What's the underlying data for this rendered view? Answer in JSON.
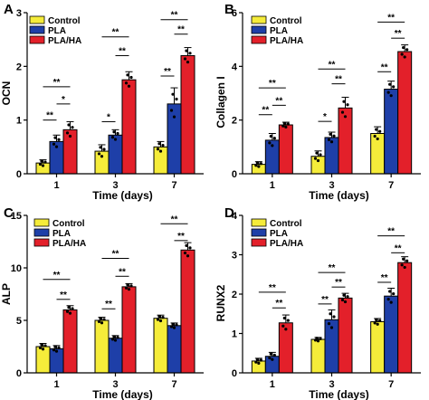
{
  "legend": {
    "items": [
      {
        "label": "Control",
        "color": "#f5ec3a"
      },
      {
        "label": "PLA",
        "color": "#1e3fa8"
      },
      {
        "label": "PLA/HA",
        "color": "#e3202a"
      }
    ]
  },
  "chart_data": [
    {
      "panel": "A",
      "type": "bar",
      "xlabel": "Time (days)",
      "ylabel": "OCN",
      "categories": [
        "1",
        "3",
        "7"
      ],
      "ylim": [
        0,
        3
      ],
      "yticks": [
        0,
        1,
        2,
        3
      ],
      "series": [
        {
          "name": "Control",
          "values": [
            0.2,
            0.42,
            0.5
          ],
          "errors": [
            0.06,
            0.12,
            0.1
          ]
        },
        {
          "name": "PLA",
          "values": [
            0.6,
            0.72,
            1.3
          ],
          "errors": [
            0.12,
            0.1,
            0.3
          ]
        },
        {
          "name": "PLA/HA",
          "values": [
            0.82,
            1.75,
            2.2
          ],
          "errors": [
            0.15,
            0.15,
            0.15
          ]
        }
      ],
      "significance": [
        {
          "group": 0,
          "from": 0,
          "to": 1,
          "label": "**",
          "y": 1.0
        },
        {
          "group": 0,
          "from": 1,
          "to": 2,
          "label": "*",
          "y": 1.3
        },
        {
          "group": 0,
          "from": 0,
          "to": 2,
          "label": "**",
          "y": 1.62
        },
        {
          "group": 1,
          "from": 0,
          "to": 1,
          "label": "*",
          "y": 0.97
        },
        {
          "group": 1,
          "from": 1,
          "to": 2,
          "label": "**",
          "y": 2.2
        },
        {
          "group": 1,
          "from": 0,
          "to": 2,
          "label": "**",
          "y": 2.55
        },
        {
          "group": 2,
          "from": 0,
          "to": 1,
          "label": "**",
          "y": 1.82
        },
        {
          "group": 2,
          "from": 1,
          "to": 2,
          "label": "**",
          "y": 2.6
        },
        {
          "group": 2,
          "from": 0,
          "to": 2,
          "label": "**",
          "y": 2.87
        }
      ]
    },
    {
      "panel": "B",
      "type": "bar",
      "xlabel": "Time (days)",
      "ylabel": "Collagen I",
      "categories": [
        "1",
        "3",
        "7"
      ],
      "ylim": [
        0,
        6
      ],
      "yticks": [
        0,
        2,
        4,
        6
      ],
      "series": [
        {
          "name": "Control",
          "values": [
            0.35,
            0.65,
            1.5
          ],
          "errors": [
            0.1,
            0.2,
            0.25
          ]
        },
        {
          "name": "PLA",
          "values": [
            1.25,
            1.35,
            3.15
          ],
          "errors": [
            0.25,
            0.2,
            0.3
          ]
        },
        {
          "name": "PLA/HA",
          "values": [
            1.82,
            2.45,
            4.55
          ],
          "errors": [
            0.1,
            0.4,
            0.25
          ]
        }
      ],
      "significance": [
        {
          "group": 0,
          "from": 0,
          "to": 1,
          "label": "**",
          "y": 2.2
        },
        {
          "group": 0,
          "from": 1,
          "to": 2,
          "label": "**",
          "y": 2.55
        },
        {
          "group": 0,
          "from": 0,
          "to": 2,
          "label": "**",
          "y": 3.2
        },
        {
          "group": 1,
          "from": 0,
          "to": 1,
          "label": "*",
          "y": 1.95
        },
        {
          "group": 1,
          "from": 1,
          "to": 2,
          "label": "**",
          "y": 3.35
        },
        {
          "group": 1,
          "from": 0,
          "to": 2,
          "label": "**",
          "y": 3.9
        },
        {
          "group": 2,
          "from": 0,
          "to": 1,
          "label": "**",
          "y": 3.8
        },
        {
          "group": 2,
          "from": 1,
          "to": 2,
          "label": "**",
          "y": 5.05
        },
        {
          "group": 2,
          "from": 0,
          "to": 2,
          "label": "**",
          "y": 5.65
        }
      ]
    },
    {
      "panel": "C",
      "type": "bar",
      "xlabel": "Time (days)",
      "ylabel": "ALP",
      "categories": [
        "1",
        "3",
        "7"
      ],
      "ylim": [
        0,
        15
      ],
      "yticks": [
        0,
        5,
        10,
        15
      ],
      "series": [
        {
          "name": "Control",
          "values": [
            2.5,
            5.0,
            5.2
          ],
          "errors": [
            0.3,
            0.3,
            0.3
          ]
        },
        {
          "name": "PLA",
          "values": [
            2.3,
            3.3,
            4.5
          ],
          "errors": [
            0.3,
            0.25,
            0.25
          ]
        },
        {
          "name": "PLA/HA",
          "values": [
            6.0,
            8.2,
            11.7
          ],
          "errors": [
            0.4,
            0.3,
            0.7
          ]
        }
      ],
      "significance": [
        {
          "group": 0,
          "from": 1,
          "to": 2,
          "label": "**",
          "y": 7.0
        },
        {
          "group": 0,
          "from": 0,
          "to": 2,
          "label": "**",
          "y": 8.9
        },
        {
          "group": 1,
          "from": 0,
          "to": 1,
          "label": "**",
          "y": 6.1
        },
        {
          "group": 1,
          "from": 1,
          "to": 2,
          "label": "**",
          "y": 9.2
        },
        {
          "group": 1,
          "from": 0,
          "to": 2,
          "label": "**",
          "y": 10.9
        },
        {
          "group": 2,
          "from": 1,
          "to": 2,
          "label": "**",
          "y": 12.6
        },
        {
          "group": 2,
          "from": 0,
          "to": 2,
          "label": "**",
          "y": 14.2
        }
      ]
    },
    {
      "panel": "D",
      "type": "bar",
      "xlabel": "Time (days)",
      "ylabel": "RUNX2",
      "categories": [
        "1",
        "3",
        "7"
      ],
      "ylim": [
        0,
        4
      ],
      "yticks": [
        0,
        1,
        2,
        3,
        4
      ],
      "series": [
        {
          "name": "Control",
          "values": [
            0.3,
            0.85,
            1.3
          ],
          "errors": [
            0.07,
            0.05,
            0.08
          ]
        },
        {
          "name": "PLA",
          "values": [
            0.42,
            1.35,
            1.95
          ],
          "errors": [
            0.1,
            0.25,
            0.2
          ]
        },
        {
          "name": "PLA/HA",
          "values": [
            1.27,
            1.9,
            2.8
          ],
          "errors": [
            0.2,
            0.12,
            0.15
          ]
        }
      ],
      "significance": [
        {
          "group": 0,
          "from": 1,
          "to": 2,
          "label": "**",
          "y": 1.65
        },
        {
          "group": 0,
          "from": 0,
          "to": 2,
          "label": "**",
          "y": 2.05
        },
        {
          "group": 1,
          "from": 0,
          "to": 1,
          "label": "**",
          "y": 1.75
        },
        {
          "group": 1,
          "from": 1,
          "to": 2,
          "label": "**",
          "y": 2.18
        },
        {
          "group": 1,
          "from": 0,
          "to": 2,
          "label": "**",
          "y": 2.55
        },
        {
          "group": 2,
          "from": 0,
          "to": 1,
          "label": "**",
          "y": 2.3
        },
        {
          "group": 2,
          "from": 1,
          "to": 2,
          "label": "**",
          "y": 3.05
        },
        {
          "group": 2,
          "from": 0,
          "to": 2,
          "label": "**",
          "y": 3.48
        }
      ]
    }
  ]
}
